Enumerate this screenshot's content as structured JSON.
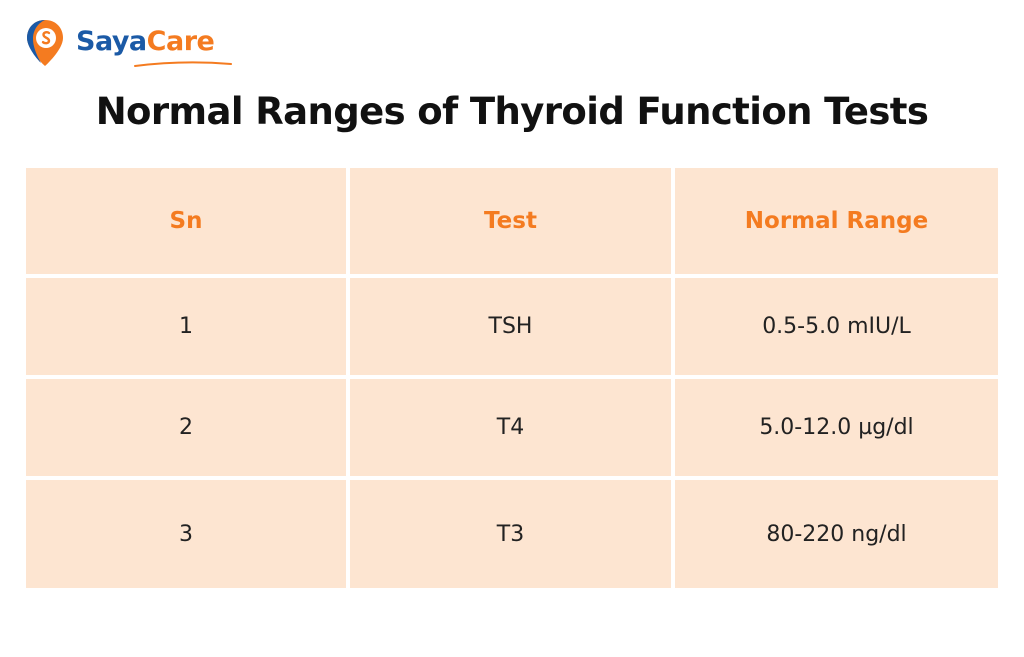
{
  "brand": {
    "name_part1": "Saya",
    "name_part2": "Care",
    "logo_icon": "location-pin-logo-icon",
    "colors": {
      "blue": "#1b5aa6",
      "orange": "#f47b20",
      "cell_background": "#fde5d1"
    }
  },
  "title": "Normal Ranges of Thyroid Function Tests",
  "table": {
    "headers": [
      "Sn",
      "Test",
      "Normal Range"
    ],
    "rows": [
      [
        "1",
        "TSH",
        "0.5-5.0 mIU/L"
      ],
      [
        "2",
        "T4",
        "5.0-12.0 µg/dl"
      ],
      [
        "3",
        "T3",
        "80-220 ng/dl"
      ]
    ]
  }
}
